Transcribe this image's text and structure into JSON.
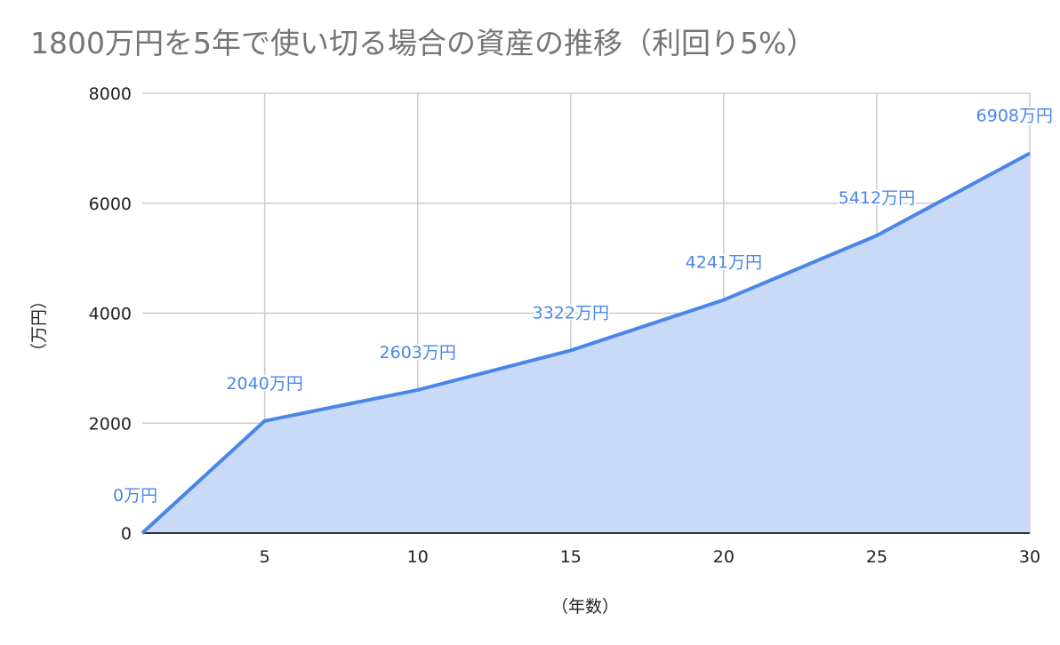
{
  "chart_data": {
    "type": "area",
    "title": "1800万円を5年で使い切る場合の資産の推移（利回り5%）",
    "xlabel": "（年数）",
    "ylabel": "（万円）",
    "x": [
      1,
      5,
      10,
      15,
      20,
      25,
      30
    ],
    "series": [
      {
        "values": [
          0,
          2040,
          2603,
          3322,
          4241,
          5412,
          6908
        ],
        "labels": [
          "0万円",
          "2040万円",
          "2603万円",
          "3322万円",
          "4241万円",
          "5412万円",
          "6908万円"
        ]
      }
    ],
    "xticks": [
      "5",
      "10",
      "15",
      "20",
      "25",
      "30"
    ],
    "xtick_values": [
      5,
      10,
      15,
      20,
      25,
      30
    ],
    "yticks": [
      "0",
      "2000",
      "4000",
      "6000",
      "8000"
    ],
    "ytick_values": [
      0,
      2000,
      4000,
      6000,
      8000
    ],
    "xlim": [
      1,
      30
    ],
    "ylim": [
      0,
      8000
    ],
    "grid": true,
    "colors": {
      "line": "#4a86e8",
      "fill": "#c9daf8",
      "grid": "#cccccc",
      "baseline": "#333333"
    }
  }
}
